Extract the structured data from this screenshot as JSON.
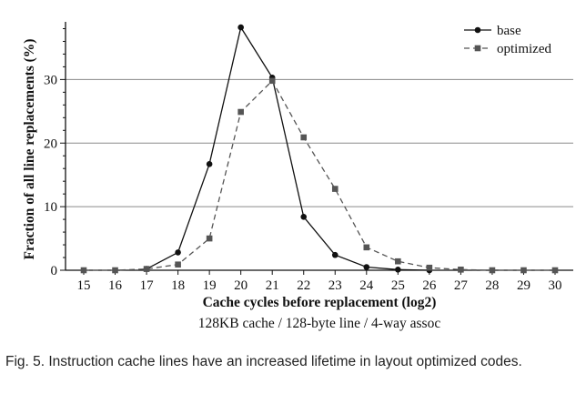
{
  "chart_data": {
    "type": "line",
    "xlabel": "Cache cycles before replacement (log2)",
    "subtitle": "128KB cache / 128-byte line / 4-way assoc",
    "ylabel": "Fraction of all line replacements (%)",
    "x": [
      15,
      16,
      17,
      18,
      19,
      20,
      21,
      22,
      23,
      24,
      25,
      26,
      27,
      28,
      29,
      30
    ],
    "xticks": [
      "15",
      "16",
      "17",
      "18",
      "19",
      "20",
      "21",
      "22",
      "23",
      "24",
      "25",
      "26",
      "27",
      "28",
      "29",
      "30"
    ],
    "yticks": [
      "0",
      "10",
      "20",
      "30"
    ],
    "ytick_values": [
      0,
      10,
      20,
      30
    ],
    "ylim": [
      0,
      38.5
    ],
    "xlim": [
      15,
      30
    ],
    "grid": "horizontal",
    "legend_position": "top-right",
    "series": [
      {
        "name": "base",
        "style": "solid",
        "marker": "circle",
        "color": "#111111",
        "x": [
          17,
          18,
          19,
          20,
          21,
          22,
          23,
          24,
          25,
          26
        ],
        "values": [
          0.2,
          2.8,
          16.7,
          38.2,
          30.3,
          8.4,
          2.4,
          0.5,
          0.1,
          0.0
        ]
      },
      {
        "name": "optimized",
        "style": "dashed",
        "marker": "square",
        "color": "#555555",
        "x": [
          15,
          16,
          17,
          18,
          19,
          20,
          21,
          22,
          23,
          24,
          25,
          26,
          27,
          28,
          29,
          30
        ],
        "values": [
          0.0,
          0.0,
          0.2,
          0.9,
          5.0,
          24.9,
          29.8,
          20.9,
          12.8,
          3.6,
          1.4,
          0.4,
          0.1,
          0.0,
          0.0,
          0.0
        ]
      }
    ]
  },
  "caption": "Fig. 5. Instruction cache lines have an increased lifetime in layout optimized codes."
}
